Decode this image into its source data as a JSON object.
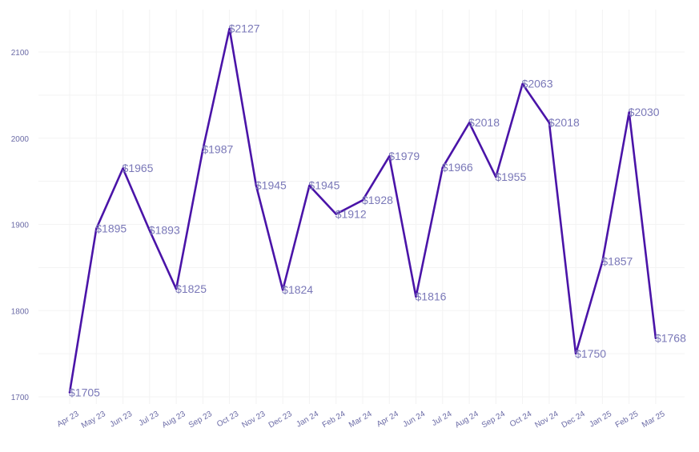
{
  "chart_data": {
    "type": "line",
    "title": "",
    "xlabel": "",
    "ylabel": "",
    "categories": [
      "Apr 23",
      "May 23",
      "Jun 23",
      "Jul 23",
      "Aug 23",
      "Sep 23",
      "Oct 23",
      "Nov 23",
      "Dec 23",
      "Jan 24",
      "Feb 24",
      "Mar 24",
      "Apr 24",
      "Jun 24",
      "Jul 24",
      "Aug 24",
      "Sep 24",
      "Oct 24",
      "Nov 24",
      "Dec 24",
      "Jan 25",
      "Feb 25",
      "Mar 25"
    ],
    "series": [
      {
        "values": [
          1705,
          1895,
          1965,
          1893,
          1825,
          1987,
          2127,
          1945,
          1824,
          1945,
          1912,
          1928,
          1979,
          1816,
          1966,
          2018,
          1955,
          2063,
          2018,
          1750,
          1857,
          2030,
          1768
        ],
        "labels": [
          "$1705",
          "$1895",
          "$1965",
          "$1893",
          "$1825",
          "$1987",
          "$2127",
          "$1945",
          "$1824",
          "$1945",
          "$1912",
          "$1928",
          "$1979",
          "$1816",
          "$1966",
          "$2018",
          "$1955",
          "$2063",
          "$2018",
          "$1750",
          "$1857",
          "$2030",
          "$1768"
        ]
      }
    ],
    "ylim": [
      1690,
      2140
    ],
    "yticks": [
      1700,
      1800,
      1900,
      2000,
      2100
    ],
    "grid": true,
    "colors": {
      "line": "#4a14a8",
      "labels": "#7a78b8",
      "ticks": "#6b6ba6",
      "grid": "#f3f3f3"
    }
  }
}
